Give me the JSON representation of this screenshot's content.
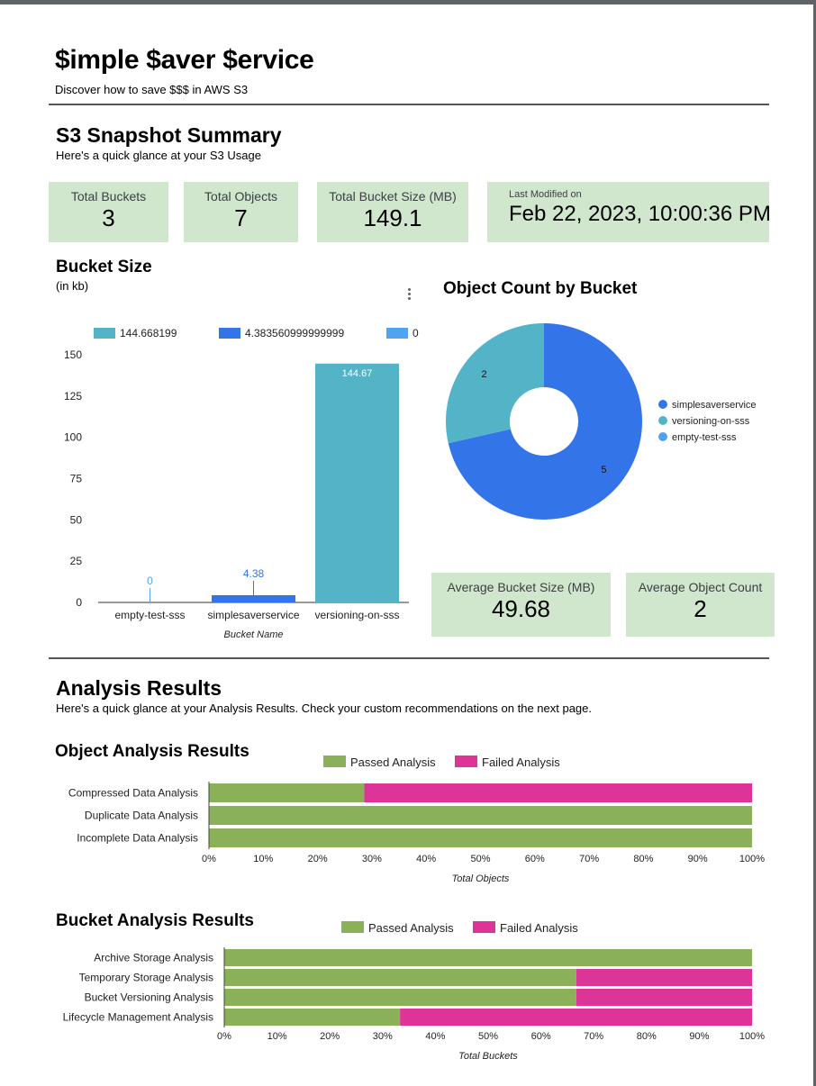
{
  "header": {
    "title": "$imple $aver $ervice",
    "subtitle": "Discover how to save $$$ in AWS S3"
  },
  "summary": {
    "heading": "S3 Snapshot Summary",
    "subheading": "Here's a quick glance at your S3 Usage",
    "total_buckets_label": "Total Buckets",
    "total_buckets_value": "3",
    "total_objects_label": "Total Objects",
    "total_objects_value": "7",
    "total_size_label": "Total Bucket Size (MB)",
    "total_size_value": "149.1",
    "last_modified_label": "Last Modified on",
    "last_modified_value": "Feb 22, 2023, 10:00:36 PM",
    "avg_size_label": "Average Bucket Size (MB)",
    "avg_size_value": "49.68",
    "avg_count_label": "Average Object Count",
    "avg_count_value": "2"
  },
  "colors": {
    "kpi_bg": "#d0e6cd",
    "teal": "#53b4c8",
    "blue": "#3375e8",
    "light_blue": "#4fa3f0",
    "pass": "#8ab15a",
    "fail": "#dd3597"
  },
  "analysis": {
    "heading": "Analysis Results",
    "subheading": "Here's a quick glance at your Analysis Results. Check your custom recommendations on the next page."
  },
  "chart_data": [
    {
      "id": "bucket_size",
      "type": "bar",
      "title": "Bucket Size",
      "subtitle": "(in kb)",
      "xlabel": "Bucket Name",
      "ylabel": "",
      "ylim": [
        0,
        150
      ],
      "yticks": [
        "0",
        "25",
        "50",
        "75",
        "100",
        "125",
        "150"
      ],
      "ytick_values": [
        0,
        25,
        50,
        75,
        100,
        125,
        150
      ],
      "categories": [
        "empty-test-sss",
        "simplesaverservice",
        "versioning-on-sss"
      ],
      "values": [
        0,
        4.38,
        144.67
      ],
      "data_labels": [
        "0",
        "4.38",
        "144.67"
      ],
      "bar_colors": [
        "#4fa3f0",
        "#3375e8",
        "#53b4c8"
      ],
      "label_colors": [
        "#4fa3f0",
        "#3375e8",
        "#ffffff"
      ],
      "legend": [
        {
          "name": "144.668199",
          "color": "#53b4c8"
        },
        {
          "name": "4.383560999999999",
          "color": "#3375e8"
        },
        {
          "name": "0",
          "color": "#4fa3f0"
        }
      ]
    },
    {
      "id": "object_count",
      "type": "pie",
      "title": "Object Count by Bucket",
      "slices": [
        {
          "name": "simplesaverservice",
          "value": 5,
          "label": "5",
          "color": "#3375e8"
        },
        {
          "name": "versioning-on-sss",
          "value": 2,
          "label": "2",
          "color": "#53b4c8"
        },
        {
          "name": "empty-test-sss",
          "value": 0,
          "label": "",
          "color": "#4fa3f0"
        }
      ],
      "donut": true
    },
    {
      "id": "object_analysis",
      "type": "bar",
      "orientation": "horizontal-stacked-100",
      "title": "Object Analysis Results",
      "xlabel": "Total Objects",
      "xticks": [
        "0%",
        "10%",
        "20%",
        "30%",
        "40%",
        "50%",
        "60%",
        "70%",
        "80%",
        "90%",
        "100%"
      ],
      "categories": [
        "Compressed Data Analysis",
        "Duplicate Data Analysis",
        "Incomplete Data Analysis"
      ],
      "series": [
        {
          "name": "Passed Analysis",
          "color": "#8ab15a",
          "values": [
            28.6,
            100,
            100
          ]
        },
        {
          "name": "Failed Analysis",
          "color": "#dd3597",
          "values": [
            71.4,
            0,
            0
          ]
        }
      ]
    },
    {
      "id": "bucket_analysis",
      "type": "bar",
      "orientation": "horizontal-stacked-100",
      "title": "Bucket Analysis Results",
      "xlabel": "Total Buckets",
      "xticks": [
        "0%",
        "10%",
        "20%",
        "30%",
        "40%",
        "50%",
        "60%",
        "70%",
        "80%",
        "90%",
        "100%"
      ],
      "categories": [
        "Archive Storage Analysis",
        "Temporary Storage Analysis",
        "Bucket Versioning Analysis",
        "Lifecycle Management Analysis"
      ],
      "series": [
        {
          "name": "Passed Analysis",
          "color": "#8ab15a",
          "values": [
            100,
            66.7,
            66.7,
            33.3
          ]
        },
        {
          "name": "Failed Analysis",
          "color": "#dd3597",
          "values": [
            0,
            33.3,
            33.3,
            66.7
          ]
        }
      ]
    }
  ]
}
